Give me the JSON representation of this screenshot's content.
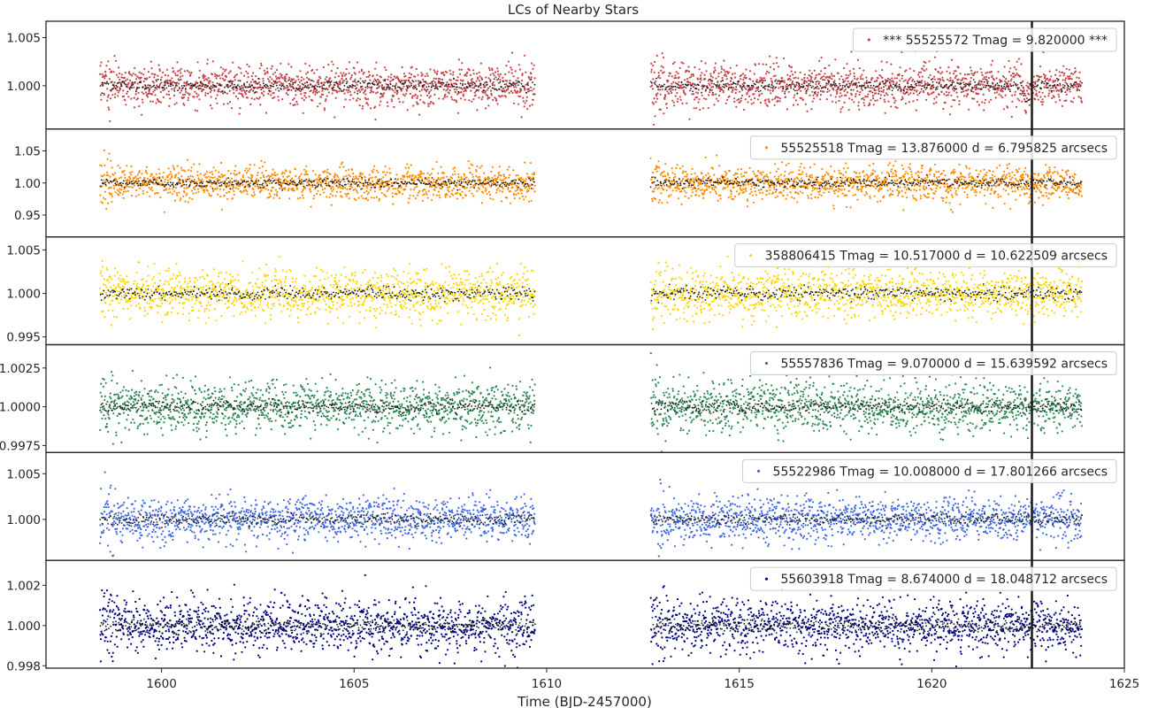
{
  "chart_data": {
    "type": "scatter",
    "title": "LCs of Nearby Stars",
    "xlabel": "Time (BJD-2457000)",
    "ylabel": "",
    "xlim": [
      1597,
      1625
    ],
    "x_ticks": [
      1600,
      1605,
      1610,
      1615,
      1620,
      1625
    ],
    "x_tick_labels": [
      "1600",
      "1605",
      "1610",
      "1615",
      "1620",
      "1625"
    ],
    "marked_time": 1622.6,
    "marker_line_color": "#1a1a1a",
    "binned_color": "#1a1a1a",
    "data_segments": [
      [
        1598.4,
        1609.7
      ],
      [
        1612.7,
        1623.9
      ]
    ],
    "grid": false,
    "legend_position": "upper right",
    "panels": [
      {
        "legend": "*** 55525572  Tmag = 9.820000 ***",
        "color": "#c8454b",
        "ylim": [
          0.9955,
          1.0067
        ],
        "y_ticks": [
          1.0,
          1.005
        ],
        "y_tick_labels": [
          "1.000",
          "1.005"
        ],
        "scatter_sd": 0.0011,
        "transit": {
          "center": 1622.45,
          "depth": 0.0017,
          "half_width": 0.12
        },
        "approx_points": 2600
      },
      {
        "legend": "55525518  Tmag = 13.876000   d = 6.795825 arcsecs",
        "color": "#ff8c00",
        "ylim": [
          0.916,
          1.084
        ],
        "y_ticks": [
          0.95,
          1.0,
          1.05
        ],
        "y_tick_labels": [
          "0.95",
          "1.00",
          "1.05"
        ],
        "scatter_sd": 0.013,
        "approx_points": 2600
      },
      {
        "legend": "358806415  Tmag = 10.517000   d = 10.622509 arcsecs",
        "color": "#ffd700",
        "ylim": [
          0.9941,
          1.0065
        ],
        "y_ticks": [
          0.995,
          1.0,
          1.005
        ],
        "y_tick_labels": [
          "0.995",
          "1.000",
          "1.005"
        ],
        "scatter_sd": 0.0014,
        "approx_points": 2600
      },
      {
        "legend": "55557836  Tmag = 9.070000   d = 15.639592 arcsecs",
        "color": "#2e8b57",
        "ylim": [
          0.99705,
          1.004
        ],
        "y_ticks": [
          0.9975,
          1.0,
          1.0025
        ],
        "y_tick_labels": [
          "0.9975",
          "1.0000",
          "1.0025"
        ],
        "scatter_sd": 0.0008,
        "approx_points": 2600
      },
      {
        "legend": "55522986  Tmag = 10.008000   d = 17.801266 arcsecs",
        "color": "#4169e1",
        "ylim": [
          0.99552,
          1.00732
        ],
        "y_ticks": [
          1.0,
          1.005
        ],
        "y_tick_labels": [
          "1.000",
          "1.005"
        ],
        "scatter_sd": 0.0012,
        "approx_points": 2600
      },
      {
        "legend": "55603918  Tmag = 8.674000   d = 18.048712 arcsecs",
        "color": "#000080",
        "ylim": [
          0.99788,
          1.00324
        ],
        "y_ticks": [
          0.998,
          1.0,
          1.002
        ],
        "y_tick_labels": [
          "0.998",
          "1.000",
          "1.002"
        ],
        "scatter_sd": 0.00065,
        "approx_points": 2600
      }
    ]
  }
}
